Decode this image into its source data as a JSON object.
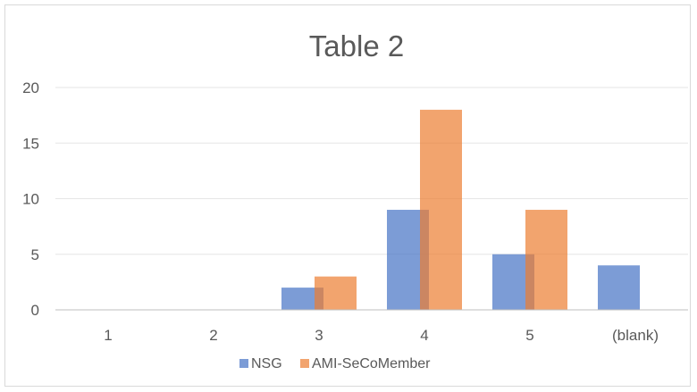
{
  "chart_data": {
    "type": "bar",
    "title": "Table 2",
    "xlabel": "",
    "ylabel": "",
    "categories": [
      "1",
      "2",
      "3",
      "4",
      "5",
      "(blank)"
    ],
    "series": [
      {
        "name": "NSG",
        "values": [
          0,
          0,
          2,
          9,
          5,
          4
        ],
        "color": "#4472C4"
      },
      {
        "name": "AMI-SeCoMember",
        "values": [
          0,
          0,
          3,
          18,
          9,
          0
        ],
        "color": "#ED7D31"
      }
    ],
    "ylim": [
      0,
      20
    ],
    "yticks": [
      "0",
      "5",
      "10",
      "15",
      "20"
    ],
    "grid": true,
    "legend_position": "bottom",
    "bar_opacity": 0.7
  }
}
